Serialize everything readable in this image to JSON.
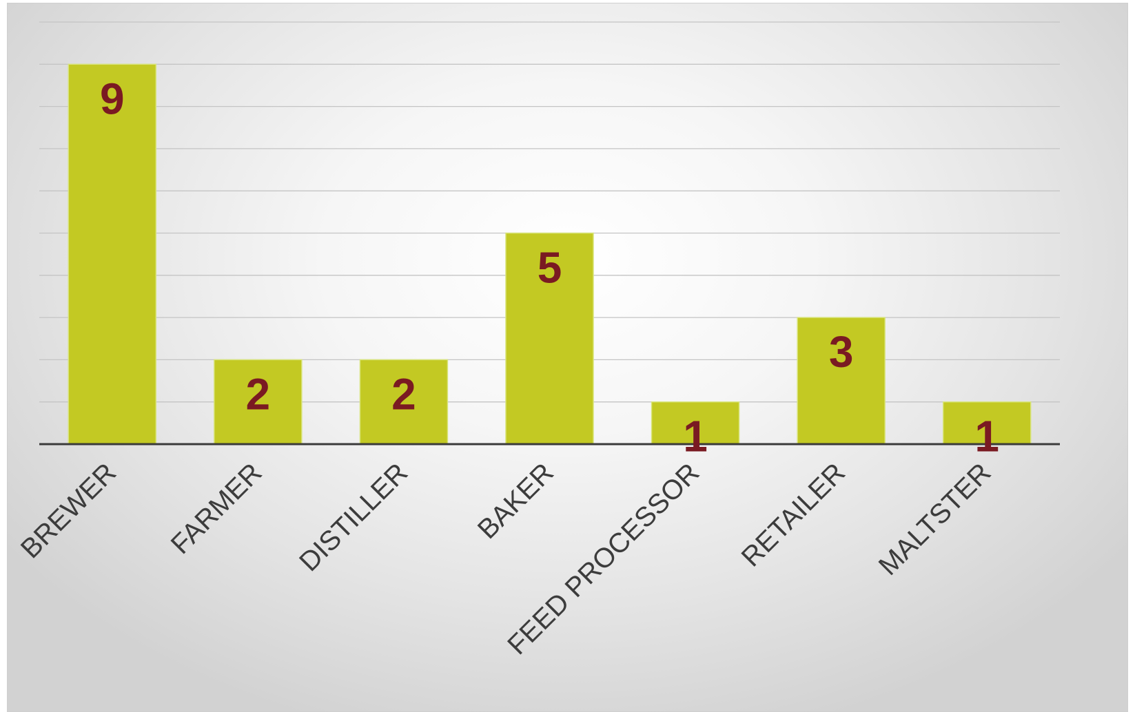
{
  "chart_data": {
    "type": "bar",
    "categories": [
      "BREWER",
      "FARMER",
      "DISTILLER",
      "BAKER",
      "FEED PROCESSOR",
      "RETAILER",
      "MALTSTER"
    ],
    "values": [
      9,
      2,
      2,
      5,
      1,
      3,
      1
    ],
    "data_labels": [
      "9",
      "2",
      "2",
      "5",
      "1",
      "3",
      "1"
    ],
    "ylim": [
      0,
      10
    ],
    "grid": true,
    "bar_color": "#c3c923",
    "label_color": "#7a1a22",
    "axis_color": "#3a3a3a",
    "gridline_color": "#c4c4c4"
  }
}
